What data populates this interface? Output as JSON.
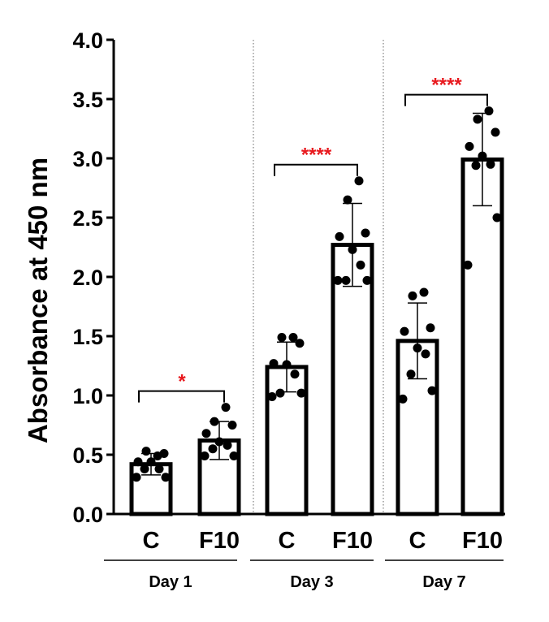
{
  "chart_data": {
    "type": "bar",
    "title": "",
    "ylabel": "Absorbance at 450 nm",
    "xlabel": "",
    "ylim": [
      0,
      4.0
    ],
    "yticks": [
      "0.0",
      "0.5",
      "1.0",
      "1.5",
      "2.0",
      "2.5",
      "3.0",
      "3.5",
      "4.0"
    ],
    "groups": [
      {
        "label": "Day 1",
        "significance": "*",
        "bars": [
          {
            "category": "C",
            "mean": 0.42,
            "sd": 0.09,
            "points": [
              0.31,
              0.31,
              0.38,
              0.38,
              0.44,
              0.44,
              0.51,
              0.53,
              0.49
            ]
          },
          {
            "category": "F10",
            "mean": 0.62,
            "sd": 0.16,
            "points": [
              0.49,
              0.49,
              0.55,
              0.58,
              0.61,
              0.68,
              0.75,
              0.78,
              0.9
            ]
          }
        ]
      },
      {
        "label": "Day 3",
        "significance": "****",
        "bars": [
          {
            "category": "C",
            "mean": 1.24,
            "sd": 0.21,
            "points": [
              0.99,
              1.02,
              1.02,
              1.18,
              1.26,
              1.27,
              1.44,
              1.49,
              1.49
            ]
          },
          {
            "category": "F10",
            "mean": 2.27,
            "sd": 0.35,
            "points": [
              1.97,
              1.97,
              1.97,
              2.1,
              2.23,
              2.34,
              2.37,
              2.65,
              2.81
            ]
          }
        ]
      },
      {
        "label": "Day 7",
        "significance": "****",
        "bars": [
          {
            "category": "C",
            "mean": 1.46,
            "sd": 0.32,
            "points": [
              0.97,
              1.04,
              1.18,
              1.35,
              1.4,
              1.54,
              1.57,
              1.84,
              1.87
            ]
          },
          {
            "category": "F10",
            "mean": 2.99,
            "sd": 0.39,
            "points": [
              2.1,
              2.5,
              2.94,
              2.95,
              3.02,
              3.1,
              3.22,
              3.33,
              3.4
            ]
          }
        ]
      }
    ],
    "colors": {
      "bar_fill": "#ffffff",
      "stroke": "#000000",
      "significance": "#e8191e",
      "divider": "#7f7f7f"
    },
    "grid": false,
    "legend": "none"
  }
}
